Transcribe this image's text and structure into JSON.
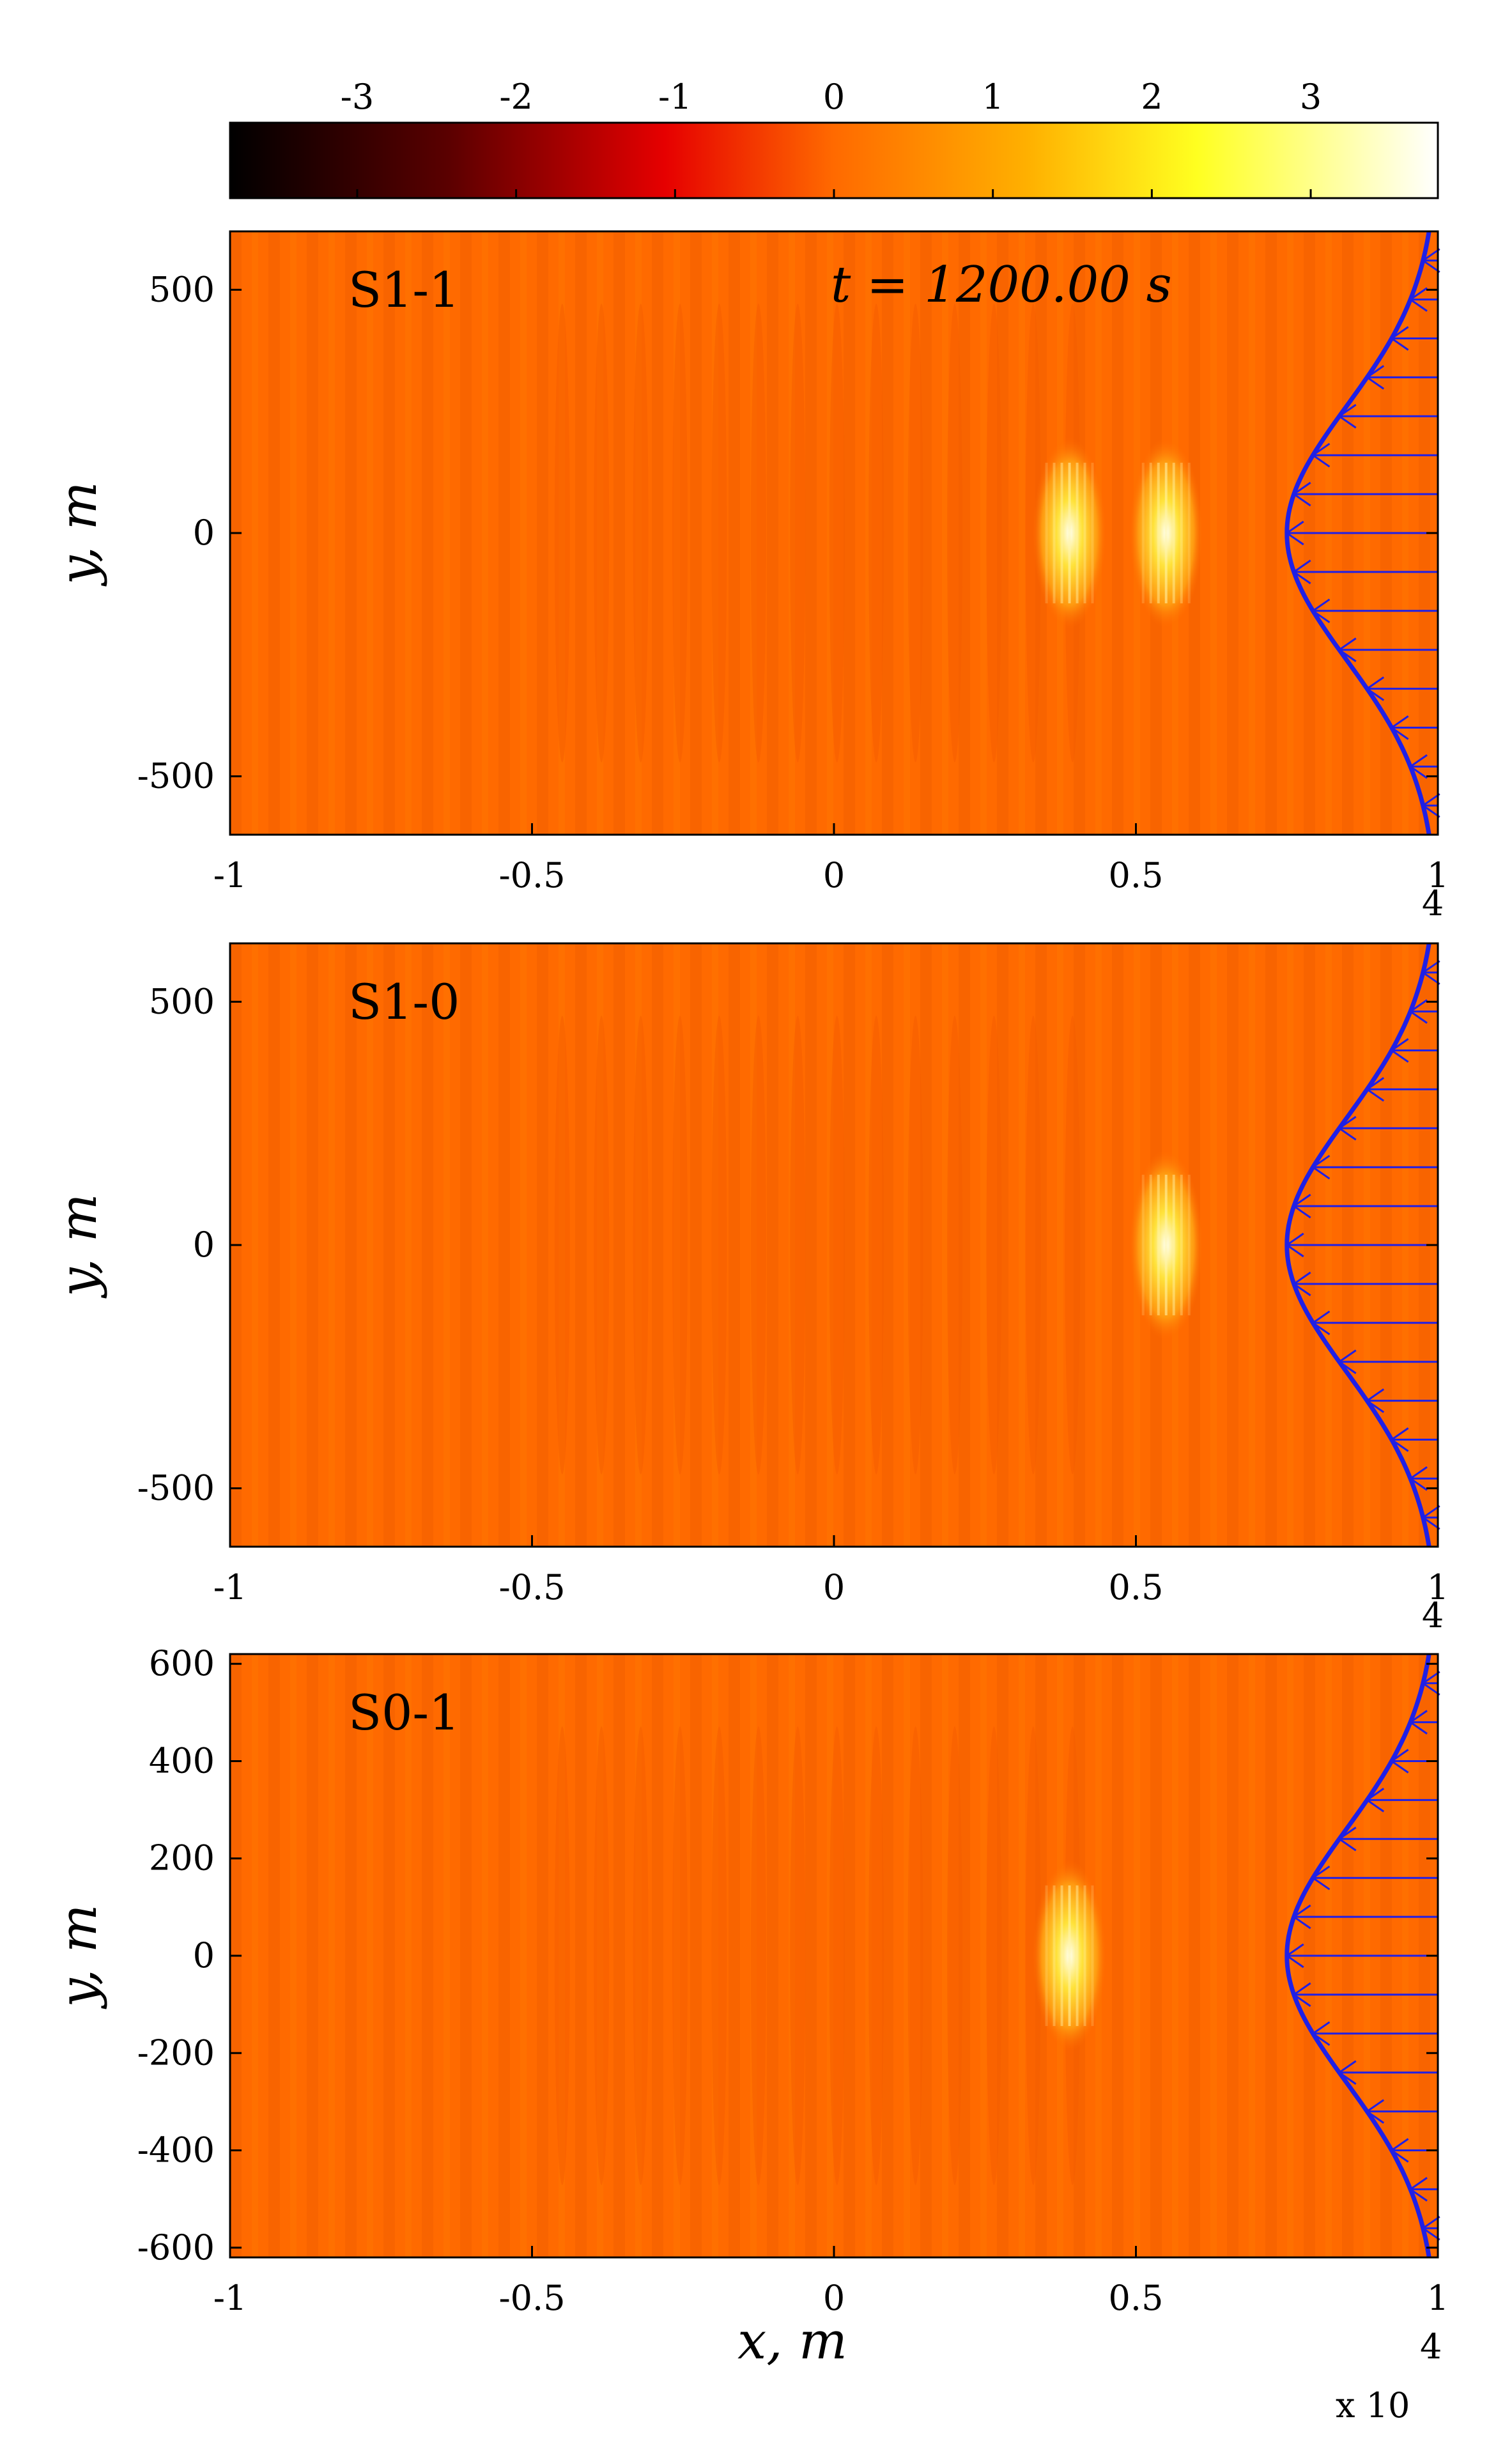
{
  "figure": {
    "time_label": "t = 1200.00 s",
    "xlabel": "x, m",
    "ylabel": "y, m",
    "x_exponent_label": "x 10",
    "x_exponent_power": "4",
    "colors": {
      "background_field": "#ff6a00",
      "profile": "#1f1fe6"
    }
  },
  "colorbar": {
    "ticks": [
      "-3",
      "-2",
      "-1",
      "0",
      "1",
      "2",
      "3"
    ],
    "range": [
      -3.8,
      3.8
    ],
    "colormap": "hot (black-red-orange-yellow-white)"
  },
  "chart_data": [
    {
      "type": "heatmap",
      "title": "",
      "panel_label": "S1-1",
      "xlabel": "",
      "ylabel": "y, m",
      "xlim": [
        -1,
        1
      ],
      "ylim": [
        -620,
        620
      ],
      "x_scale_note": "x 10^4",
      "x_ticks": [
        "-1",
        "-0.5",
        "0",
        "0.5",
        "1"
      ],
      "y_ticks": [
        "500",
        "0",
        "-500"
      ],
      "y_tick_values": [
        500,
        0,
        -500
      ],
      "bright_spots_x": [
        0.39,
        0.55
      ],
      "profile_vertex_x": 0.75
    },
    {
      "type": "heatmap",
      "title": "",
      "panel_label": "S1-0",
      "xlabel": "",
      "ylabel": "y, m",
      "xlim": [
        -1,
        1
      ],
      "ylim": [
        -620,
        620
      ],
      "x_scale_note": "x 10^4",
      "x_ticks": [
        "-1",
        "-0.5",
        "0",
        "0.5",
        "1"
      ],
      "y_ticks": [
        "500",
        "0",
        "-500"
      ],
      "y_tick_values": [
        500,
        0,
        -500
      ],
      "bright_spots_x": [
        0.55
      ],
      "profile_vertex_x": 0.75
    },
    {
      "type": "heatmap",
      "title": "",
      "panel_label": "S0-1",
      "xlabel": "x, m",
      "ylabel": "y, m",
      "xlim": [
        -1,
        1
      ],
      "ylim": [
        -620,
        620
      ],
      "x_scale_note": "x 10^4",
      "x_ticks": [
        "-1",
        "-0.5",
        "0",
        "0.5",
        "1"
      ],
      "y_ticks": [
        "600",
        "400",
        "200",
        "0",
        "-200",
        "-400",
        "-600"
      ],
      "y_tick_values": [
        600,
        400,
        200,
        0,
        -200,
        -400,
        -600
      ],
      "bright_spots_x": [
        0.39
      ],
      "profile_vertex_x": 0.75
    }
  ]
}
